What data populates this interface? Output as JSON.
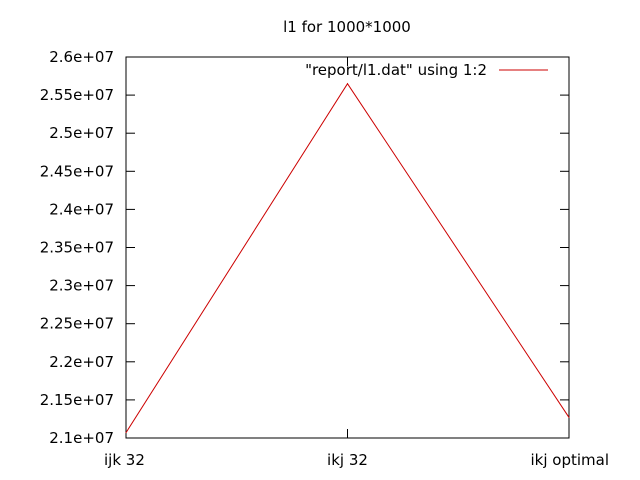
{
  "chart_data": {
    "type": "line",
    "title": "l1 for 1000*1000",
    "xlabel": "",
    "ylabel": "",
    "categories": [
      "ijk 32",
      "ikj 32",
      "ikj optimal"
    ],
    "y_tick_labels": [
      "2.1e+07",
      "2.15e+07",
      "2.2e+07",
      "2.25e+07",
      "2.3e+07",
      "2.35e+07",
      "2.4e+07",
      "2.45e+07",
      "2.5e+07",
      "2.55e+07",
      "2.6e+07"
    ],
    "y_ticks": [
      21000000,
      21500000,
      22000000,
      22500000,
      23000000,
      23500000,
      24000000,
      24500000,
      25000000,
      25500000,
      26000000
    ],
    "ylim": [
      21000000,
      26000000
    ],
    "grid": false,
    "legend_position": "top-right",
    "series": [
      {
        "name": "\"report/l1.dat\" using 1:2",
        "color": "#cc0000",
        "values": [
          21070000,
          25650000,
          21270000
        ]
      }
    ]
  }
}
